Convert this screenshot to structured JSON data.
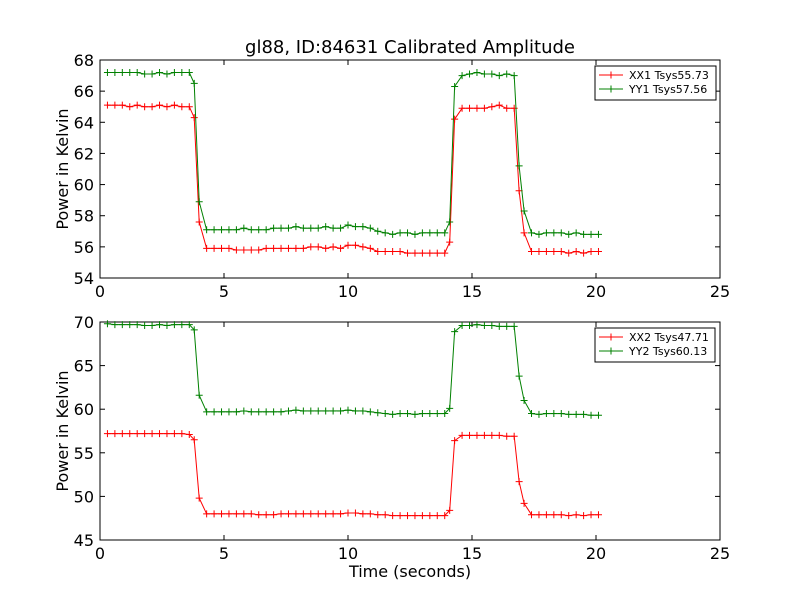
{
  "chart_data": {
    "type": "line",
    "title": "gl88, ID:84631 Calibrated Amplitude",
    "subplots": [
      {
        "ylabel": "Power in Kelvin",
        "xlabel": "",
        "xlim": [
          0,
          25
        ],
        "ylim": [
          54,
          68
        ],
        "xticks": [
          0,
          5,
          10,
          15,
          20,
          25
        ],
        "yticks": [
          54,
          56,
          58,
          60,
          62,
          64,
          66,
          68
        ],
        "legend": "top-right",
        "series": [
          {
            "name": "XX1 Tsys55.73",
            "color": "#ff0000",
            "x": [
              0.3,
              0.6,
              0.9,
              1.2,
              1.5,
              1.8,
              2.1,
              2.4,
              2.7,
              3.0,
              3.3,
              3.6,
              3.8,
              4.0,
              4.3,
              4.6,
              4.9,
              5.2,
              5.5,
              5.8,
              6.1,
              6.4,
              6.7,
              7.0,
              7.3,
              7.6,
              7.9,
              8.2,
              8.5,
              8.8,
              9.1,
              9.4,
              9.7,
              10.0,
              10.3,
              10.6,
              10.9,
              11.2,
              11.5,
              11.8,
              12.1,
              12.4,
              12.7,
              13.0,
              13.3,
              13.6,
              13.9,
              14.1,
              14.3,
              14.6,
              14.9,
              15.2,
              15.5,
              15.8,
              16.1,
              16.4,
              16.7,
              16.9,
              17.1,
              17.4,
              17.7,
              18.0,
              18.3,
              18.6,
              18.9,
              19.2,
              19.5,
              19.8,
              20.1
            ],
            "values": [
              65.1,
              65.1,
              65.1,
              65.0,
              65.1,
              65.0,
              65.0,
              65.1,
              65.0,
              65.1,
              65.0,
              65.0,
              64.3,
              57.6,
              55.9,
              55.9,
              55.9,
              55.9,
              55.8,
              55.8,
              55.8,
              55.8,
              55.9,
              55.9,
              55.9,
              55.9,
              55.9,
              55.9,
              56.0,
              56.0,
              55.9,
              56.0,
              55.9,
              56.1,
              56.1,
              56.0,
              55.9,
              55.7,
              55.7,
              55.7,
              55.7,
              55.6,
              55.6,
              55.6,
              55.6,
              55.6,
              55.6,
              56.3,
              64.2,
              64.9,
              64.9,
              64.9,
              64.9,
              65.0,
              65.1,
              64.9,
              64.9,
              59.6,
              56.9,
              55.7,
              55.7,
              55.7,
              55.7,
              55.7,
              55.6,
              55.7,
              55.6,
              55.7,
              55.7
            ]
          },
          {
            "name": "YY1 Tsys57.56",
            "color": "#008000",
            "x": [
              0.3,
              0.6,
              0.9,
              1.2,
              1.5,
              1.8,
              2.1,
              2.4,
              2.7,
              3.0,
              3.3,
              3.6,
              3.8,
              4.0,
              4.3,
              4.6,
              4.9,
              5.2,
              5.5,
              5.8,
              6.1,
              6.4,
              6.7,
              7.0,
              7.3,
              7.6,
              7.9,
              8.2,
              8.5,
              8.8,
              9.1,
              9.4,
              9.7,
              10.0,
              10.3,
              10.6,
              10.9,
              11.2,
              11.5,
              11.8,
              12.1,
              12.4,
              12.7,
              13.0,
              13.3,
              13.6,
              13.9,
              14.1,
              14.3,
              14.6,
              14.9,
              15.2,
              15.5,
              15.8,
              16.1,
              16.4,
              16.7,
              16.9,
              17.1,
              17.4,
              17.7,
              18.0,
              18.3,
              18.6,
              18.9,
              19.2,
              19.5,
              19.8,
              20.1
            ],
            "values": [
              67.2,
              67.2,
              67.2,
              67.2,
              67.2,
              67.1,
              67.1,
              67.2,
              67.1,
              67.2,
              67.2,
              67.2,
              66.5,
              58.9,
              57.1,
              57.1,
              57.1,
              57.1,
              57.1,
              57.2,
              57.1,
              57.1,
              57.1,
              57.2,
              57.2,
              57.2,
              57.3,
              57.2,
              57.2,
              57.2,
              57.3,
              57.2,
              57.2,
              57.4,
              57.3,
              57.3,
              57.2,
              57.0,
              56.9,
              56.8,
              56.9,
              56.9,
              56.8,
              56.9,
              56.9,
              56.9,
              56.9,
              57.6,
              66.3,
              67.0,
              67.1,
              67.2,
              67.1,
              67.1,
              67.0,
              67.1,
              67.0,
              61.2,
              58.3,
              56.9,
              56.8,
              56.9,
              56.9,
              56.9,
              56.8,
              56.9,
              56.8,
              56.8,
              56.8
            ]
          }
        ]
      },
      {
        "ylabel": "Power in Kelvin",
        "xlabel": "Time (seconds)",
        "xlim": [
          0,
          25
        ],
        "ylim": [
          45,
          70
        ],
        "xticks": [
          0,
          5,
          10,
          15,
          20,
          25
        ],
        "yticks": [
          45,
          50,
          55,
          60,
          65,
          70
        ],
        "legend": "top-right",
        "series": [
          {
            "name": "XX2 Tsys47.71",
            "color": "#ff0000",
            "x": [
              0.3,
              0.6,
              0.9,
              1.2,
              1.5,
              1.8,
              2.1,
              2.4,
              2.7,
              3.0,
              3.3,
              3.6,
              3.8,
              4.0,
              4.3,
              4.6,
              4.9,
              5.2,
              5.5,
              5.8,
              6.1,
              6.4,
              6.7,
              7.0,
              7.3,
              7.6,
              7.9,
              8.2,
              8.5,
              8.8,
              9.1,
              9.4,
              9.7,
              10.0,
              10.3,
              10.6,
              10.9,
              11.2,
              11.5,
              11.8,
              12.1,
              12.4,
              12.7,
              13.0,
              13.3,
              13.6,
              13.9,
              14.1,
              14.3,
              14.6,
              14.9,
              15.2,
              15.5,
              15.8,
              16.1,
              16.4,
              16.7,
              16.9,
              17.1,
              17.4,
              17.7,
              18.0,
              18.3,
              18.6,
              18.9,
              19.2,
              19.5,
              19.8,
              20.1
            ],
            "values": [
              57.2,
              57.2,
              57.2,
              57.2,
              57.2,
              57.2,
              57.2,
              57.2,
              57.2,
              57.2,
              57.2,
              57.1,
              56.5,
              49.8,
              48.0,
              48.0,
              48.0,
              48.0,
              48.0,
              48.0,
              48.0,
              47.9,
              47.9,
              47.9,
              48.0,
              48.0,
              48.0,
              48.0,
              48.0,
              48.0,
              48.0,
              48.0,
              48.0,
              48.1,
              48.1,
              48.0,
              48.0,
              47.9,
              47.9,
              47.8,
              47.8,
              47.8,
              47.8,
              47.8,
              47.8,
              47.8,
              47.8,
              48.4,
              56.4,
              57.0,
              57.0,
              57.0,
              57.0,
              57.0,
              57.0,
              56.9,
              56.9,
              51.7,
              49.2,
              47.9,
              47.9,
              47.9,
              47.9,
              47.9,
              47.8,
              47.9,
              47.8,
              47.9,
              47.9
            ]
          },
          {
            "name": "YY2 Tsys60.13",
            "color": "#008000",
            "x": [
              0.3,
              0.6,
              0.9,
              1.2,
              1.5,
              1.8,
              2.1,
              2.4,
              2.7,
              3.0,
              3.3,
              3.6,
              3.8,
              4.0,
              4.3,
              4.6,
              4.9,
              5.2,
              5.5,
              5.8,
              6.1,
              6.4,
              6.7,
              7.0,
              7.3,
              7.6,
              7.9,
              8.2,
              8.5,
              8.8,
              9.1,
              9.4,
              9.7,
              10.0,
              10.3,
              10.6,
              10.9,
              11.2,
              11.5,
              11.8,
              12.1,
              12.4,
              12.7,
              13.0,
              13.3,
              13.6,
              13.9,
              14.1,
              14.3,
              14.6,
              14.9,
              15.2,
              15.5,
              15.8,
              16.1,
              16.4,
              16.7,
              16.9,
              17.1,
              17.4,
              17.7,
              18.0,
              18.3,
              18.6,
              18.9,
              19.2,
              19.5,
              19.8,
              20.1
            ],
            "values": [
              69.8,
              69.7,
              69.7,
              69.7,
              69.7,
              69.6,
              69.6,
              69.7,
              69.6,
              69.7,
              69.7,
              69.7,
              69.1,
              61.6,
              59.7,
              59.7,
              59.7,
              59.7,
              59.7,
              59.8,
              59.7,
              59.7,
              59.7,
              59.7,
              59.7,
              59.8,
              59.9,
              59.8,
              59.8,
              59.8,
              59.8,
              59.8,
              59.8,
              59.9,
              59.8,
              59.8,
              59.7,
              59.6,
              59.5,
              59.4,
              59.5,
              59.5,
              59.4,
              59.5,
              59.5,
              59.5,
              59.5,
              60.1,
              68.9,
              69.6,
              69.6,
              69.7,
              69.6,
              69.6,
              69.5,
              69.5,
              69.5,
              63.8,
              61.0,
              59.5,
              59.4,
              59.5,
              59.5,
              59.5,
              59.4,
              59.4,
              59.4,
              59.3,
              59.3
            ]
          }
        ]
      }
    ]
  }
}
